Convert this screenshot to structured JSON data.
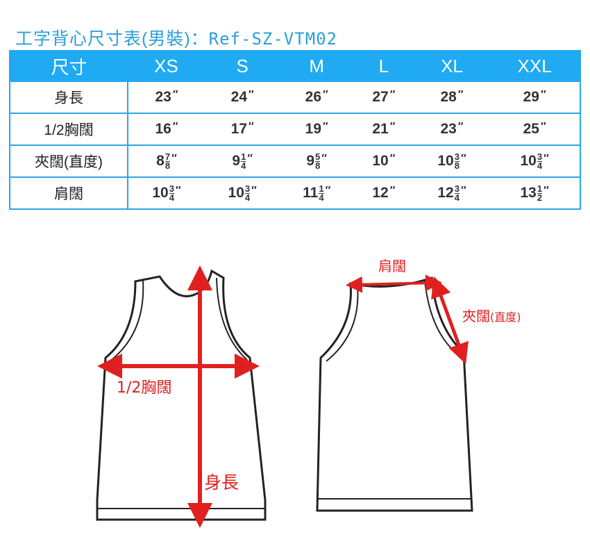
{
  "title": {
    "main": "工字背心尺寸表(男裝)：",
    "ref": "Ref-SZ-VTM02"
  },
  "table": {
    "header": [
      "尺寸",
      "XS",
      "S",
      "M",
      "L",
      "XL",
      "XXL"
    ],
    "rows": [
      {
        "label": "身長",
        "cells": [
          {
            "w": "23"
          },
          {
            "w": "24"
          },
          {
            "w": "26"
          },
          {
            "w": "27"
          },
          {
            "w": "28"
          },
          {
            "w": "29"
          }
        ]
      },
      {
        "label": "1/2胸闊",
        "cells": [
          {
            "w": "16"
          },
          {
            "w": "17"
          },
          {
            "w": "19"
          },
          {
            "w": "21"
          },
          {
            "w": "23"
          },
          {
            "w": "25"
          }
        ]
      },
      {
        "label": "夾闊(直度)",
        "cells": [
          {
            "w": "8",
            "n": "7",
            "d": "8"
          },
          {
            "w": "9",
            "n": "1",
            "d": "4"
          },
          {
            "w": "9",
            "n": "5",
            "d": "8"
          },
          {
            "w": "10"
          },
          {
            "w": "10",
            "n": "3",
            "d": "8"
          },
          {
            "w": "10",
            "n": "3",
            "d": "4"
          }
        ]
      },
      {
        "label": "肩闊",
        "cells": [
          {
            "w": "10",
            "n": "3",
            "d": "4"
          },
          {
            "w": "10",
            "n": "3",
            "d": "4"
          },
          {
            "w": "11",
            "n": "1",
            "d": "4"
          },
          {
            "w": "12"
          },
          {
            "w": "12",
            "n": "3",
            "d": "4"
          },
          {
            "w": "13",
            "n": "1",
            "d": "2"
          }
        ]
      }
    ],
    "unit": "″"
  },
  "diagram": {
    "chest": "1/2胸闊",
    "length": "身長",
    "shoulder": "肩闊",
    "armhole": "夾闊",
    "armhole_note": "(直度)",
    "arrow_color": "#e02020"
  }
}
